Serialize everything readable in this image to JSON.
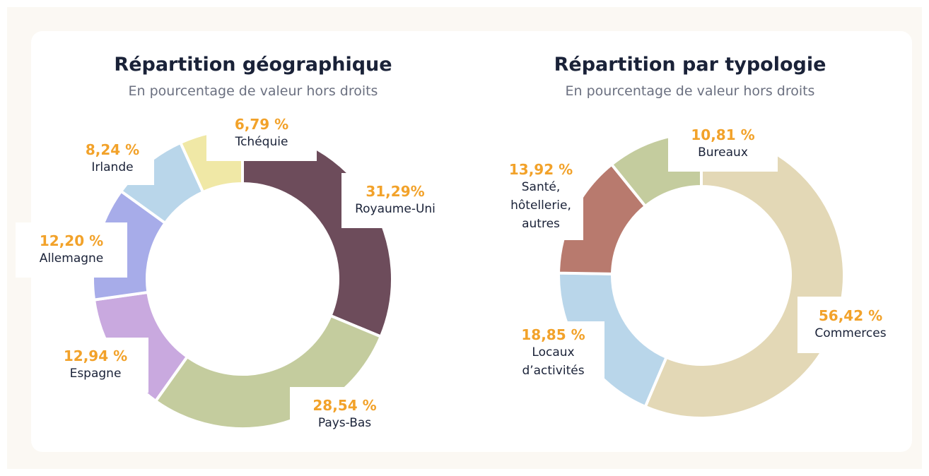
{
  "chart_data": [
    {
      "type": "pie",
      "title": "Répartition géographique",
      "subtitle": "En pourcentage de valeur hors droits",
      "categories": [
        "Royaume-Uni",
        "Pays-Bas",
        "Espagne",
        "Allemagne",
        "Irlande",
        "Tchéquie"
      ],
      "values": [
        31.29,
        28.54,
        12.94,
        12.2,
        8.24,
        6.79
      ],
      "value_labels": [
        "31,29%",
        "28,54 %",
        "12,94 %",
        "12,20 %",
        "8,24 %",
        "6,79 %"
      ],
      "colors": [
        "#6d4c5b",
        "#c4cc9e",
        "#c9a9df",
        "#a7ace9",
        "#b9d6ea",
        "#f0e8a6"
      ]
    },
    {
      "type": "pie",
      "title": "Répartition par typologie",
      "subtitle": "En pourcentage de valeur hors droits",
      "categories": [
        "Commerces",
        "Locaux d’activités",
        "Santé, hôtellerie, autres",
        "Bureaux"
      ],
      "values": [
        56.42,
        18.85,
        13.92,
        10.81
      ],
      "value_labels": [
        "56,42 %",
        "18,85 %",
        "13,92 %",
        "10,81 %"
      ],
      "colors": [
        "#e3d8b6",
        "#b9d6ea",
        "#b87a6e",
        "#c4cc9e"
      ]
    }
  ]
}
